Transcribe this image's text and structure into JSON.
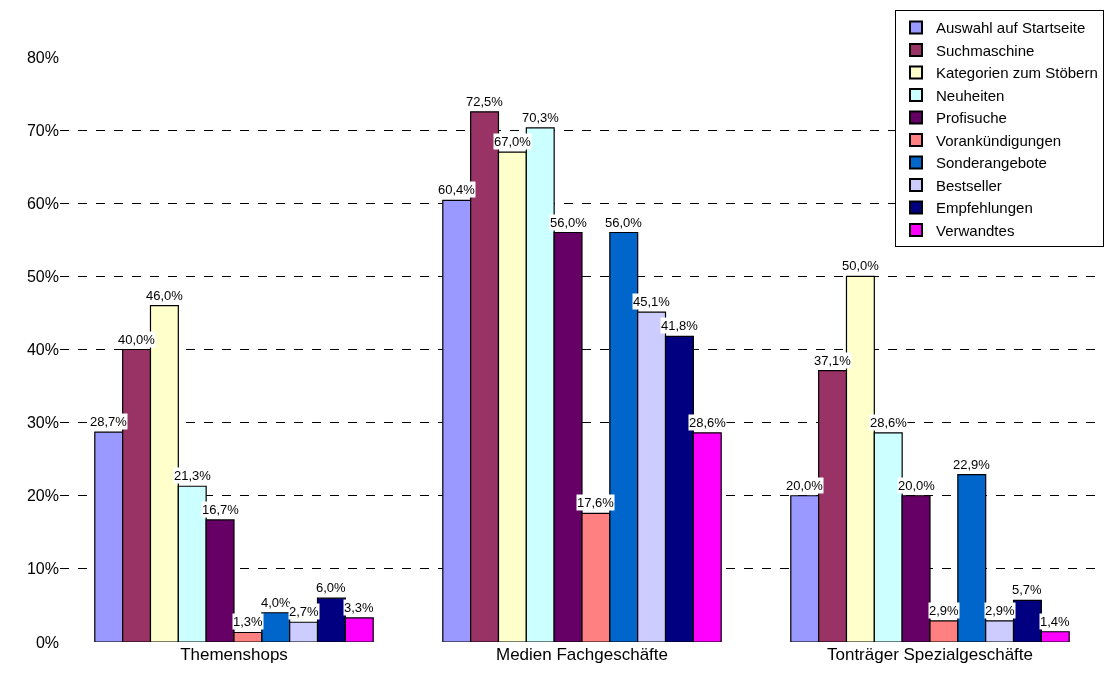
{
  "chart_data": {
    "type": "bar",
    "categories": [
      "Themenshops",
      "Medien Fachgeschäfte",
      "Tonträger Spezialgeschäfte"
    ],
    "series": [
      {
        "name": "Auswahl auf Startseite",
        "color": "#9999ff",
        "values": [
          28.7,
          60.4,
          20.0
        ],
        "value_labels": [
          "28,7%",
          "60,4%",
          "20,0%"
        ]
      },
      {
        "name": "Suchmaschine",
        "color": "#993366",
        "values": [
          40.0,
          72.5,
          37.1
        ],
        "value_labels": [
          "40,0%",
          "72,5%",
          "37,1%"
        ]
      },
      {
        "name": "Kategorien zum Stöbern",
        "color": "#ffffcc",
        "values": [
          46.0,
          67.0,
          50.0
        ],
        "value_labels": [
          "46,0%",
          "67,0%",
          "50,0%"
        ]
      },
      {
        "name": "Neuheiten",
        "color": "#ccffff",
        "values": [
          21.3,
          70.3,
          28.6
        ],
        "value_labels": [
          "21,3%",
          "70,3%",
          "28,6%"
        ]
      },
      {
        "name": "Profisuche",
        "color": "#660066",
        "values": [
          16.7,
          56.0,
          20.0
        ],
        "value_labels": [
          "16,7%",
          "56,0%",
          "20,0%"
        ]
      },
      {
        "name": "Vorankündigungen",
        "color": "#ff8080",
        "values": [
          1.3,
          17.6,
          2.9
        ],
        "value_labels": [
          "1,3%",
          "17,6%",
          "2,9%"
        ]
      },
      {
        "name": "Sonderangebote",
        "color": "#0066cc",
        "values": [
          4.0,
          56.0,
          22.9
        ],
        "value_labels": [
          "4,0%",
          "56,0%",
          "22,9%"
        ]
      },
      {
        "name": "Bestseller",
        "color": "#ccccff",
        "values": [
          2.7,
          45.1,
          2.9
        ],
        "value_labels": [
          "2,7%",
          "45,1%",
          "2,9%"
        ]
      },
      {
        "name": "Empfehlungen",
        "color": "#000080",
        "values": [
          6.0,
          41.8,
          5.7
        ],
        "value_labels": [
          "6,0%",
          "41,8%",
          "5,7%"
        ]
      },
      {
        "name": "Verwandtes",
        "color": "#ff00ff",
        "values": [
          3.3,
          28.6,
          1.4
        ],
        "value_labels": [
          "3,3%",
          "28,6%",
          "1,4%"
        ]
      }
    ],
    "ylim": [
      0,
      80
    ],
    "yticks": [
      {
        "value": 0,
        "label": "0%"
      },
      {
        "value": 10,
        "label": "10%"
      },
      {
        "value": 20,
        "label": "20%"
      },
      {
        "value": 30,
        "label": "30%"
      },
      {
        "value": 40,
        "label": "40%"
      },
      {
        "value": 50,
        "label": "50%"
      },
      {
        "value": 60,
        "label": "60%"
      },
      {
        "value": 70,
        "label": "70%"
      },
      {
        "value": 80,
        "label": "80%"
      }
    ],
    "grid": "y",
    "legend": "top right"
  }
}
